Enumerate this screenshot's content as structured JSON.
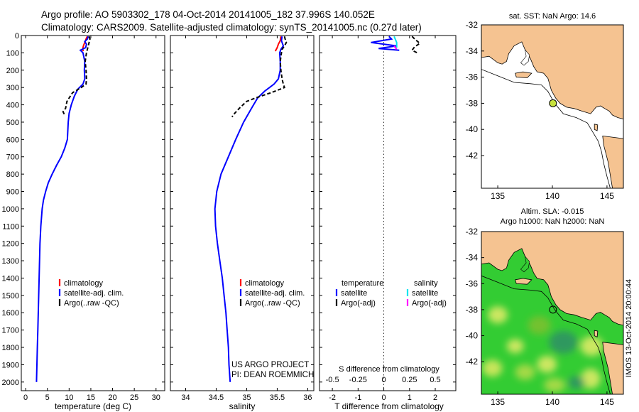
{
  "header": {
    "line1": "Argo profile: AO 5903302_178 04-Oct-2014 20141005_182 37.996S 140.052E",
    "line2": "Climatology: CARS2009. Satellite-adjusted climatology: synTS_20141005.nc (0.27d later)"
  },
  "colors": {
    "climatology": "#ff0000",
    "satellite": "#0000ff",
    "argo": "#000000",
    "sal_satellite": "#00e5ee",
    "sal_argo": "#ff00ff",
    "land": "#f5c391",
    "sla_green": "#33cc33"
  },
  "chart_data": [
    {
      "type": "line",
      "id": "temperature",
      "xlabel": "temperature (deg C)",
      "ylabel": "",
      "xlim": [
        -1,
        32
      ],
      "ylim": [
        2050,
        0
      ],
      "xticks": [
        0,
        5,
        10,
        15,
        20,
        25,
        30
      ],
      "yticks": [
        0,
        100,
        200,
        300,
        400,
        500,
        600,
        700,
        800,
        900,
        1000,
        1100,
        1200,
        1300,
        1400,
        1500,
        1600,
        1700,
        1800,
        1900,
        2000
      ],
      "legend": [
        "climatology",
        "satellite-adj. clim.",
        "Argo(..raw -QC)"
      ],
      "series": [
        {
          "name": "climatology",
          "points": [
            [
              14.2,
              5
            ],
            [
              13.9,
              20
            ],
            [
              13.6,
              40
            ],
            [
              13.3,
              60
            ],
            [
              13.1,
              80
            ],
            [
              13.3,
              90
            ]
          ]
        },
        {
          "name": "satellite-adj. clim.",
          "points": [
            [
              14.4,
              5
            ],
            [
              14.2,
              20
            ],
            [
              13.6,
              35
            ],
            [
              14.0,
              50
            ],
            [
              13.8,
              70
            ],
            [
              12.6,
              85
            ],
            [
              13.2,
              100
            ],
            [
              13.6,
              150
            ],
            [
              13.5,
              200
            ],
            [
              13.6,
              250
            ],
            [
              13.2,
              280
            ],
            [
              12.0,
              310
            ],
            [
              11.2,
              350
            ],
            [
              10.5,
              400
            ],
            [
              10.0,
              450
            ],
            [
              9.8,
              500
            ],
            [
              9.6,
              600
            ],
            [
              9.0,
              650
            ],
            [
              8.2,
              700
            ],
            [
              7.1,
              750
            ],
            [
              6.1,
              800
            ],
            [
              5.2,
              850
            ],
            [
              4.6,
              900
            ],
            [
              4.1,
              950
            ],
            [
              3.8,
              1000
            ],
            [
              3.5,
              1100
            ],
            [
              3.3,
              1200
            ],
            [
              3.2,
              1300
            ],
            [
              3.1,
              1400
            ],
            [
              3.0,
              1500
            ],
            [
              2.9,
              1600
            ],
            [
              2.8,
              1700
            ],
            [
              2.7,
              1800
            ],
            [
              2.6,
              1900
            ],
            [
              2.5,
              2000
            ]
          ]
        },
        {
          "name": "Argo(..raw -QC)",
          "points": [
            [
              14.6,
              5
            ],
            [
              14.8,
              20
            ],
            [
              14.5,
              50
            ],
            [
              14.0,
              100
            ],
            [
              13.7,
              150
            ],
            [
              13.9,
              200
            ],
            [
              14.0,
              250
            ],
            [
              13.9,
              280
            ],
            [
              12.8,
              300
            ],
            [
              10.8,
              330
            ],
            [
              9.5,
              380
            ],
            [
              9.2,
              420
            ],
            [
              8.6,
              440
            ],
            [
              9.0,
              460
            ]
          ]
        }
      ]
    },
    {
      "type": "line",
      "id": "salinity",
      "xlabel": "salinity",
      "ylabel": "",
      "xlim": [
        33.75,
        36.1
      ],
      "ylim": [
        2050,
        0
      ],
      "xticks": [
        34,
        34.5,
        35,
        35.5,
        36
      ],
      "legend": [
        "climatology",
        "satellite-adj. clim.",
        "Argo(..raw -QC)"
      ],
      "annotation": [
        "US ARGO PROJECT",
        "PI: DEAN ROEMMICH"
      ],
      "series": [
        {
          "name": "climatology",
          "points": [
            [
              35.56,
              5
            ],
            [
              35.55,
              30
            ],
            [
              35.52,
              50
            ],
            [
              35.5,
              70
            ],
            [
              35.47,
              90
            ]
          ]
        },
        {
          "name": "satellite-adj. clim.",
          "points": [
            [
              35.58,
              5
            ],
            [
              35.57,
              30
            ],
            [
              35.6,
              60
            ],
            [
              35.56,
              80
            ],
            [
              35.54,
              100
            ],
            [
              35.55,
              150
            ],
            [
              35.55,
              200
            ],
            [
              35.52,
              250
            ],
            [
              35.45,
              280
            ],
            [
              35.3,
              320
            ],
            [
              35.18,
              360
            ],
            [
              35.08,
              420
            ],
            [
              34.95,
              500
            ],
            [
              34.82,
              600
            ],
            [
              34.7,
              700
            ],
            [
              34.58,
              800
            ],
            [
              34.51,
              900
            ],
            [
              34.48,
              1000
            ],
            [
              34.49,
              1100
            ],
            [
              34.52,
              1200
            ],
            [
              34.56,
              1300
            ],
            [
              34.6,
              1400
            ],
            [
              34.63,
              1500
            ],
            [
              34.66,
              1600
            ],
            [
              34.68,
              1700
            ],
            [
              34.7,
              1800
            ],
            [
              34.71,
              1900
            ],
            [
              34.73,
              2000
            ]
          ]
        },
        {
          "name": "Argo(..raw -QC)",
          "points": [
            [
              35.62,
              5
            ],
            [
              35.63,
              20
            ],
            [
              35.65,
              40
            ],
            [
              35.62,
              60
            ],
            [
              35.58,
              80
            ],
            [
              35.57,
              100
            ],
            [
              35.55,
              150
            ],
            [
              35.56,
              200
            ],
            [
              35.58,
              250
            ],
            [
              35.6,
              280
            ],
            [
              35.62,
              300
            ],
            [
              35.4,
              330
            ],
            [
              35.15,
              360
            ],
            [
              35.0,
              380
            ],
            [
              34.88,
              420
            ],
            [
              34.8,
              450
            ],
            [
              34.76,
              470
            ]
          ]
        }
      ]
    },
    {
      "type": "line",
      "id": "difference",
      "xlabel_top": "S difference from climatology",
      "xlabel": "T difference from climatology",
      "xlim": [
        -2.5,
        2.8
      ],
      "ylim": [
        2050,
        0
      ],
      "xticks": [
        -2,
        -1,
        0,
        1,
        2
      ],
      "xticks_s": [
        -0.5,
        -0.25,
        0,
        0.25,
        0.5
      ],
      "legend_t": {
        "title": "temperature",
        "items": [
          "satellite",
          "Argo(-adj)"
        ]
      },
      "legend_s": {
        "title": "salinity",
        "items": [
          "satellite",
          "Argo(-adj)"
        ]
      },
      "series": [
        {
          "name": "T satellite",
          "points": [
            [
              0.2,
              5
            ],
            [
              0.3,
              20
            ],
            [
              -0.5,
              40
            ],
            [
              0.5,
              60
            ],
            [
              -0.2,
              75
            ],
            [
              0.6,
              85
            ]
          ]
        },
        {
          "name": "T Argo(-adj)",
          "points": [
            [
              1.1,
              5
            ],
            [
              1.2,
              20
            ],
            [
              1.4,
              45
            ],
            [
              1.2,
              65
            ],
            [
              1.1,
              85
            ],
            [
              1.3,
              100
            ]
          ]
        },
        {
          "name": "S satellite",
          "points": [
            [
              0.4,
              5
            ],
            [
              0.5,
              40
            ],
            [
              0.5,
              70
            ]
          ]
        },
        {
          "name": "S Argo(-adj)",
          "points": [
            [
              0.4,
              60
            ],
            [
              0.5,
              80
            ]
          ]
        }
      ]
    },
    {
      "type": "map",
      "id": "sst-map",
      "title": "sat. SST: NaN Argo: 14.6",
      "xlim": [
        133.5,
        146.5
      ],
      "ylim": [
        -44.5,
        -32
      ],
      "xticks": [
        135,
        140,
        145
      ],
      "yticks": [
        -32,
        -34,
        -36,
        -38,
        -40,
        -42
      ],
      "marker": {
        "lon": 140.052,
        "lat": -37.996
      }
    },
    {
      "type": "map",
      "id": "sla-map",
      "title_line1": "Altim. SLA: -0.015",
      "title_line2": "Argo h1000: NaN h2000: NaN",
      "xlim": [
        133.5,
        146.5
      ],
      "ylim": [
        -44.5,
        -32
      ],
      "xticks": [
        135,
        140,
        145
      ],
      "yticks": [
        -32,
        -34,
        -36,
        -38,
        -40,
        -42
      ],
      "marker": {
        "lon": 140.052,
        "lat": -37.996
      },
      "side_label": "IMOS 13-Oct-2014 20:00:44"
    }
  ]
}
